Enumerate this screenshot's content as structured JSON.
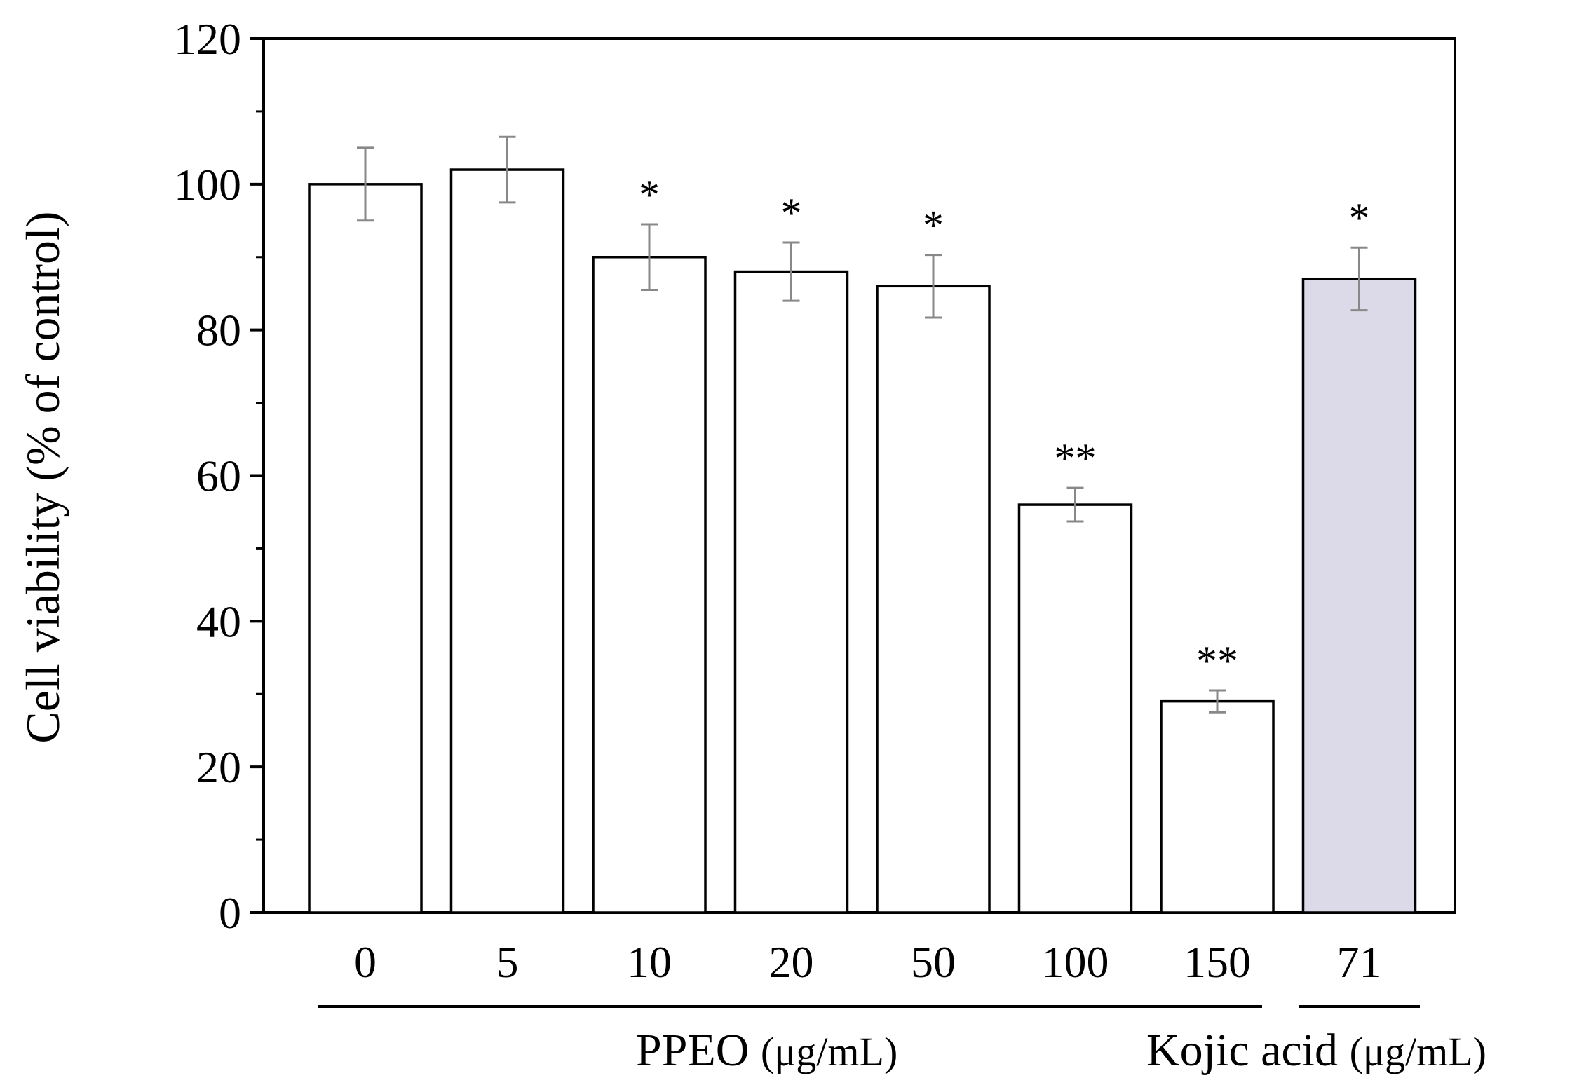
{
  "chart_data": {
    "type": "bar",
    "title": "",
    "ylabel": "Cell viability (% of control)",
    "ylim": [
      0,
      120
    ],
    "yticks": [
      0,
      20,
      40,
      60,
      80,
      100,
      120
    ],
    "grid": false,
    "categories": [
      "0",
      "5",
      "10",
      "20",
      "50",
      "100",
      "150",
      "71"
    ],
    "values": [
      100,
      102,
      90,
      88,
      86,
      56,
      29,
      87
    ],
    "errors": [
      5,
      4.5,
      4.5,
      4,
      4.3,
      2.3,
      1.5,
      4.3
    ],
    "significance": [
      "",
      "",
      "*",
      "*",
      "*",
      "**",
      "**",
      "*"
    ],
    "bar_colors": [
      "#ffffff",
      "#ffffff",
      "#ffffff",
      "#ffffff",
      "#ffffff",
      "#ffffff",
      "#ffffff",
      "#dcdae8"
    ],
    "groups": [
      {
        "label": "PPEO",
        "unit": "(μg/mL)",
        "members": [
          "0",
          "5",
          "10",
          "20",
          "50",
          "100",
          "150"
        ]
      },
      {
        "label": "Kojic acid",
        "unit": "(μg/mL)",
        "members": [
          "71"
        ]
      }
    ]
  }
}
